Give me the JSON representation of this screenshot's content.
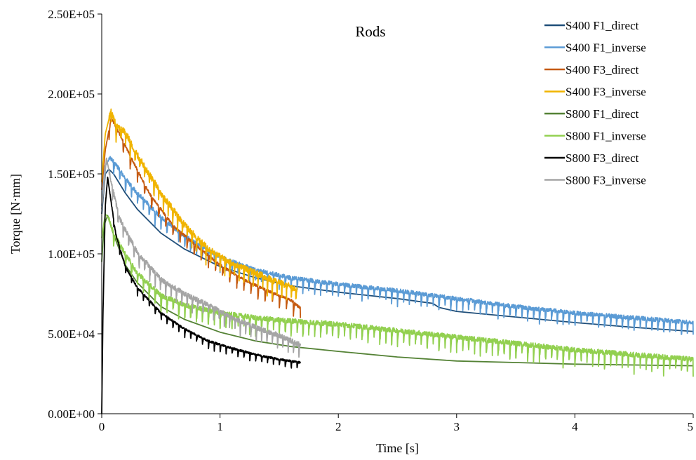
{
  "chart_data": {
    "type": "line",
    "title": "Rods",
    "xlabel": "Time [s]",
    "ylabel": "Torque [N·mm]",
    "xlim": [
      0,
      5
    ],
    "ylim": [
      0,
      250000
    ],
    "xticks": [
      0,
      1,
      2,
      3,
      4,
      5
    ],
    "xtick_labels": [
      "0",
      "1",
      "2",
      "3",
      "4",
      "5"
    ],
    "yticks": [
      0,
      50000,
      100000,
      150000,
      200000,
      250000
    ],
    "ytick_labels": [
      "0.00E+00",
      "5.00E+04",
      "1.00E+05",
      "1.50E+05",
      "2.00E+05",
      "2.50E+05"
    ],
    "grid": false,
    "legend_position": "top-right",
    "series": [
      {
        "name": "S400 F1_direct",
        "color": "#1f4e79",
        "noise": {
          "amp": 0,
          "spike": 0,
          "period": 0
        },
        "points": [
          [
            0,
            125000
          ],
          [
            0.03,
            150000
          ],
          [
            0.06,
            153000
          ],
          [
            0.1,
            150000
          ],
          [
            0.2,
            138000
          ],
          [
            0.3,
            128000
          ],
          [
            0.5,
            113000
          ],
          [
            0.7,
            103000
          ],
          [
            1.0,
            92000
          ],
          [
            1.3,
            85000
          ],
          [
            1.6,
            80000
          ],
          [
            2.0,
            76000
          ],
          [
            2.5,
            72000
          ],
          [
            2.8,
            69000
          ],
          [
            2.85,
            66500
          ],
          [
            3.0,
            64000
          ],
          [
            3.5,
            60500
          ],
          [
            4.0,
            57000
          ],
          [
            4.5,
            54000
          ],
          [
            5.0,
            51500
          ]
        ]
      },
      {
        "name": "S400 F1_inverse",
        "color": "#5b9bd5",
        "noise": {
          "amp": 2500,
          "spike": 9000,
          "period": 0.05
        },
        "points": [
          [
            0,
            130000
          ],
          [
            0.03,
            155000
          ],
          [
            0.07,
            160000
          ],
          [
            0.12,
            156000
          ],
          [
            0.2,
            147000
          ],
          [
            0.3,
            138000
          ],
          [
            0.5,
            123000
          ],
          [
            0.7,
            111000
          ],
          [
            1.0,
            98000
          ],
          [
            1.3,
            90000
          ],
          [
            1.6,
            85000
          ],
          [
            2.0,
            81000
          ],
          [
            2.5,
            77000
          ],
          [
            3.0,
            72000
          ],
          [
            3.5,
            67000
          ],
          [
            4.0,
            63000
          ],
          [
            4.5,
            60000
          ],
          [
            5.0,
            57000
          ]
        ]
      },
      {
        "name": "S400 F3_direct",
        "color": "#c55a11",
        "noise": {
          "amp": 1500,
          "spike": 9000,
          "period": 0.06
        },
        "points": [
          [
            0,
            140000
          ],
          [
            0.03,
            165000
          ],
          [
            0.08,
            185000
          ],
          [
            0.15,
            175000
          ],
          [
            0.25,
            160000
          ],
          [
            0.4,
            138000
          ],
          [
            0.6,
            118000
          ],
          [
            0.8,
            105000
          ],
          [
            1.0,
            93000
          ],
          [
            1.2,
            84000
          ],
          [
            1.4,
            77000
          ],
          [
            1.6,
            71000
          ],
          [
            1.68,
            66000
          ]
        ]
      },
      {
        "name": "S400 F3_inverse",
        "color": "#f0b400",
        "noise": {
          "amp": 4000,
          "spike": 12000,
          "period": 0.04
        },
        "points": [
          [
            0,
            145000
          ],
          [
            0.03,
            175000
          ],
          [
            0.08,
            190000
          ],
          [
            0.12,
            180000
          ],
          [
            0.2,
            176000
          ],
          [
            0.3,
            162000
          ],
          [
            0.5,
            138000
          ],
          [
            0.7,
            118000
          ],
          [
            0.9,
            103000
          ],
          [
            1.1,
            94000
          ],
          [
            1.3,
            88000
          ],
          [
            1.5,
            82000
          ],
          [
            1.65,
            78000
          ]
        ]
      },
      {
        "name": "S800 F1_direct",
        "color": "#548235",
        "noise": {
          "amp": 0,
          "spike": 0,
          "period": 0
        },
        "points": [
          [
            0,
            95000
          ],
          [
            0.02,
            118000
          ],
          [
            0.05,
            124000
          ],
          [
            0.1,
            112000
          ],
          [
            0.2,
            93000
          ],
          [
            0.3,
            82000
          ],
          [
            0.5,
            67000
          ],
          [
            0.7,
            59000
          ],
          [
            1.0,
            51000
          ],
          [
            1.3,
            45500
          ],
          [
            1.6,
            42000
          ],
          [
            2.0,
            39000
          ],
          [
            2.5,
            35500
          ],
          [
            3.0,
            33000
          ],
          [
            3.5,
            32000
          ],
          [
            4.0,
            31000
          ],
          [
            4.5,
            30500
          ],
          [
            5.0,
            30000
          ]
        ]
      },
      {
        "name": "S800 F1_inverse",
        "color": "#92d050",
        "noise": {
          "amp": 3000,
          "spike": 11000,
          "period": 0.05
        },
        "points": [
          [
            0,
            110000
          ],
          [
            0.03,
            125000
          ],
          [
            0.06,
            122000
          ],
          [
            0.1,
            113000
          ],
          [
            0.2,
            100000
          ],
          [
            0.3,
            88000
          ],
          [
            0.5,
            74000
          ],
          [
            0.7,
            68000
          ],
          [
            1.0,
            63000
          ],
          [
            1.3,
            60000
          ],
          [
            1.6,
            58000
          ],
          [
            2.0,
            56000
          ],
          [
            2.5,
            52000
          ],
          [
            3.0,
            48000
          ],
          [
            3.5,
            44000
          ],
          [
            4.0,
            40000
          ],
          [
            4.5,
            37000
          ],
          [
            5.0,
            34000
          ]
        ]
      },
      {
        "name": "S800 F3_direct",
        "color": "#000000",
        "noise": {
          "amp": 1200,
          "spike": 6000,
          "period": 0.05
        },
        "points": [
          [
            0,
            0
          ],
          [
            0.01,
            60000
          ],
          [
            0.03,
            130000
          ],
          [
            0.05,
            148000
          ],
          [
            0.08,
            132000
          ],
          [
            0.12,
            112000
          ],
          [
            0.2,
            92000
          ],
          [
            0.3,
            79000
          ],
          [
            0.5,
            63000
          ],
          [
            0.7,
            53000
          ],
          [
            0.9,
            45500
          ],
          [
            1.1,
            41000
          ],
          [
            1.3,
            37000
          ],
          [
            1.5,
            34000
          ],
          [
            1.68,
            32000
          ]
        ]
      },
      {
        "name": "S800 F3_inverse",
        "color": "#a5a5a5",
        "noise": {
          "amp": 3000,
          "spike": 10000,
          "period": 0.045
        },
        "points": [
          [
            0,
            128000
          ],
          [
            0.04,
            160000
          ],
          [
            0.08,
            145000
          ],
          [
            0.15,
            122000
          ],
          [
            0.3,
            101000
          ],
          [
            0.5,
            84000
          ],
          [
            0.7,
            75000
          ],
          [
            0.9,
            68000
          ],
          [
            1.1,
            60000
          ],
          [
            1.3,
            54000
          ],
          [
            1.5,
            49000
          ],
          [
            1.68,
            43000
          ]
        ]
      }
    ]
  }
}
